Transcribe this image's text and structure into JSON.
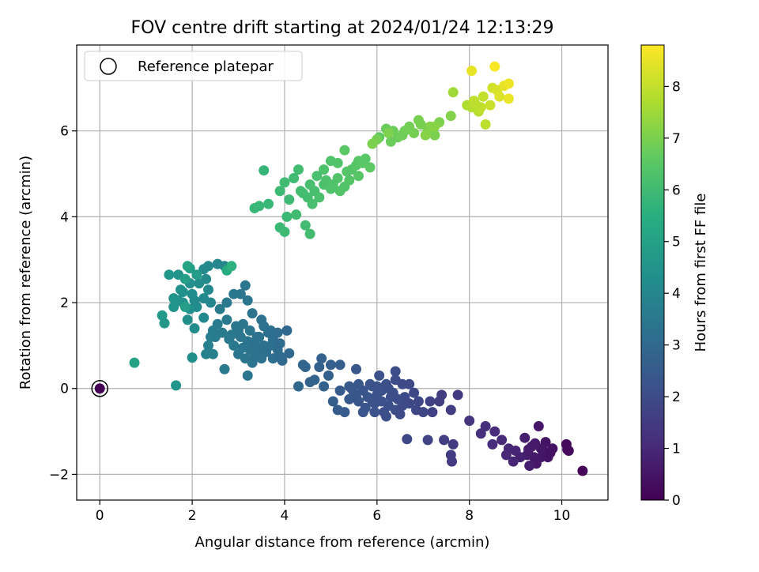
{
  "chart_data": {
    "type": "scatter",
    "title": "FOV centre drift starting at 2024/01/24 12:13:29",
    "xlabel": "Angular distance from reference (arcmin)",
    "ylabel": "Rotation from reference (arcmin)",
    "xlim": [
      -0.5,
      11.0
    ],
    "ylim": [
      -2.6,
      8.0
    ],
    "xticks": [
      0,
      2,
      4,
      6,
      8,
      10
    ],
    "yticks": [
      -2,
      0,
      2,
      4,
      6
    ],
    "grid": true,
    "legend": {
      "placement": "top-left",
      "entries": [
        "Reference platepar"
      ]
    },
    "reference_point": {
      "x": 0,
      "y": 0
    },
    "colorbar": {
      "label": "Hours from first FF file",
      "range": [
        0,
        8.8
      ],
      "ticks": [
        0,
        1,
        2,
        3,
        4,
        5,
        6,
        7,
        8
      ],
      "colormap": "viridis"
    },
    "points": [
      [
        10.45,
        -1.92,
        0.1
      ],
      [
        10.1,
        -1.3,
        0.2
      ],
      [
        10.15,
        -1.45,
        0.25
      ],
      [
        9.8,
        -1.4,
        0.4
      ],
      [
        9.7,
        -1.6,
        0.45
      ],
      [
        9.55,
        -1.6,
        0.5
      ],
      [
        9.5,
        -0.88,
        0.55
      ],
      [
        9.35,
        -1.35,
        0.65
      ],
      [
        9.4,
        -1.6,
        0.6
      ],
      [
        9.6,
        -1.45,
        0.5
      ],
      [
        9.45,
        -1.75,
        0.55
      ],
      [
        9.25,
        -1.55,
        0.7
      ],
      [
        9.2,
        -1.15,
        0.75
      ],
      [
        9.3,
        -1.8,
        0.7
      ],
      [
        9.1,
        -1.6,
        0.85
      ],
      [
        8.95,
        -1.7,
        0.9
      ],
      [
        8.85,
        -1.4,
        1.0
      ],
      [
        8.7,
        -1.2,
        1.05
      ],
      [
        8.55,
        -1.0,
        1.1
      ],
      [
        8.35,
        -0.88,
        1.15
      ],
      [
        8.25,
        -1.05,
        1.2
      ],
      [
        8.5,
        -1.3,
        1.1
      ],
      [
        8.8,
        -1.55,
        1.0
      ],
      [
        9.0,
        -1.45,
        0.9
      ],
      [
        9.65,
        -1.25,
        0.45
      ],
      [
        9.55,
        -1.4,
        0.5
      ],
      [
        9.75,
        -1.5,
        0.42
      ],
      [
        10.12,
        -1.42,
        0.22
      ],
      [
        9.28,
        -1.42,
        0.68
      ],
      [
        9.42,
        -1.28,
        0.6
      ],
      [
        8.0,
        -0.75,
        1.3
      ],
      [
        7.75,
        -0.15,
        1.45
      ],
      [
        7.6,
        -0.5,
        1.55
      ],
      [
        7.35,
        -0.3,
        1.6
      ],
      [
        7.15,
        -0.3,
        1.7
      ],
      [
        7.2,
        -0.55,
        1.7
      ],
      [
        7.4,
        -0.15,
        1.6
      ],
      [
        7.1,
        -1.2,
        1.75
      ],
      [
        7.45,
        -1.2,
        1.6
      ],
      [
        7.65,
        -1.3,
        1.5
      ],
      [
        7.6,
        -1.55,
        1.55
      ],
      [
        7.62,
        -1.7,
        1.5
      ],
      [
        6.65,
        -1.18,
        1.9
      ],
      [
        7.0,
        -0.55,
        1.8
      ],
      [
        6.85,
        -0.5,
        1.85
      ],
      [
        6.7,
        -0.35,
        1.9
      ],
      [
        6.55,
        -0.4,
        2.0
      ],
      [
        6.4,
        -0.5,
        2.05
      ],
      [
        6.25,
        -0.4,
        2.1
      ],
      [
        6.1,
        -0.3,
        2.15
      ],
      [
        6.0,
        -0.15,
        2.2
      ],
      [
        5.9,
        -0.3,
        2.25
      ],
      [
        5.75,
        -0.45,
        2.3
      ],
      [
        5.6,
        -0.3,
        2.35
      ],
      [
        5.5,
        -0.1,
        2.4
      ],
      [
        5.4,
        -0.25,
        2.45
      ],
      [
        5.3,
        -0.55,
        2.5
      ],
      [
        5.15,
        -0.5,
        2.55
      ],
      [
        5.05,
        -0.3,
        2.6
      ],
      [
        5.2,
        -0.05,
        2.5
      ],
      [
        5.4,
        0.05,
        2.45
      ],
      [
        5.6,
        0.1,
        2.35
      ],
      [
        5.55,
        0.45,
        2.4
      ],
      [
        5.85,
        0.1,
        2.3
      ],
      [
        6.05,
        0.3,
        2.2
      ],
      [
        6.2,
        0.1,
        2.15
      ],
      [
        6.4,
        0.2,
        2.05
      ],
      [
        6.4,
        0.4,
        2.05
      ],
      [
        6.55,
        0.1,
        2.0
      ],
      [
        6.7,
        0.1,
        1.95
      ],
      [
        6.8,
        -0.1,
        1.9
      ],
      [
        6.9,
        -0.3,
        1.85
      ],
      [
        6.6,
        -0.2,
        1.95
      ],
      [
        6.3,
        -0.2,
        2.1
      ],
      [
        6.15,
        -0.55,
        2.1
      ],
      [
        5.95,
        -0.55,
        2.2
      ],
      [
        5.8,
        -0.2,
        2.3
      ],
      [
        5.7,
        -0.05,
        2.3
      ],
      [
        5.9,
        0.05,
        2.25
      ],
      [
        6.1,
        -0.05,
        2.15
      ],
      [
        6.35,
        -0.1,
        2.1
      ],
      [
        6.5,
        -0.6,
        2.0
      ],
      [
        6.2,
        -0.65,
        2.1
      ],
      [
        5.95,
        -0.35,
        2.2
      ],
      [
        5.7,
        -0.55,
        2.3
      ],
      [
        5.55,
        -0.2,
        2.35
      ],
      [
        5.45,
        0.0,
        2.4
      ],
      [
        6.0,
        0.05,
        2.2
      ],
      [
        6.25,
        0.0,
        2.1
      ],
      [
        6.45,
        -0.25,
        2.05
      ],
      [
        4.85,
        0.05,
        2.7
      ],
      [
        4.55,
        0.15,
        2.8
      ],
      [
        4.3,
        0.05,
        2.9
      ],
      [
        4.45,
        0.5,
        2.85
      ],
      [
        4.75,
        0.5,
        2.75
      ],
      [
        4.8,
        0.7,
        2.75
      ],
      [
        5.0,
        0.55,
        2.65
      ],
      [
        5.2,
        0.55,
        2.6
      ],
      [
        4.95,
        0.3,
        2.7
      ],
      [
        4.65,
        0.2,
        2.8
      ],
      [
        4.4,
        0.55,
        2.85
      ],
      [
        3.95,
        0.65,
        3.0
      ],
      [
        3.85,
        0.9,
        3.1
      ],
      [
        3.75,
        1.15,
        3.15
      ],
      [
        3.65,
        1.3,
        3.2
      ],
      [
        3.55,
        1.0,
        3.25
      ],
      [
        3.45,
        0.9,
        3.25
      ],
      [
        3.35,
        0.75,
        3.3
      ],
      [
        3.25,
        0.9,
        3.35
      ],
      [
        3.15,
        0.7,
        3.4
      ],
      [
        3.0,
        0.8,
        3.45
      ],
      [
        2.9,
        1.0,
        3.5
      ],
      [
        2.85,
        1.25,
        3.55
      ],
      [
        2.95,
        1.45,
        3.5
      ],
      [
        3.1,
        1.5,
        3.45
      ],
      [
        3.25,
        1.35,
        3.4
      ],
      [
        3.4,
        1.2,
        3.3
      ],
      [
        3.55,
        1.45,
        3.25
      ],
      [
        3.7,
        1.0,
        3.2
      ],
      [
        3.85,
        1.3,
        3.1
      ],
      [
        4.05,
        1.35,
        3.0
      ],
      [
        4.1,
        0.82,
        2.95
      ],
      [
        3.9,
        1.05,
        3.05
      ],
      [
        3.7,
        1.35,
        3.2
      ],
      [
        3.5,
        1.6,
        3.25
      ],
      [
        3.3,
        1.75,
        3.35
      ],
      [
        3.2,
        2.05,
        3.4
      ],
      [
        3.15,
        2.4,
        3.4
      ],
      [
        3.05,
        2.2,
        3.45
      ],
      [
        2.9,
        2.2,
        3.5
      ],
      [
        2.75,
        2.0,
        3.55
      ],
      [
        2.6,
        1.85,
        3.6
      ],
      [
        2.55,
        1.5,
        3.65
      ],
      [
        2.45,
        1.35,
        3.7
      ],
      [
        2.4,
        1.2,
        3.75
      ],
      [
        2.35,
        1.0,
        3.75
      ],
      [
        2.3,
        0.8,
        3.8
      ],
      [
        2.45,
        0.8,
        3.75
      ],
      [
        2.7,
        0.45,
        3.6
      ],
      [
        3.2,
        0.3,
        3.4
      ],
      [
        3.05,
        1.2,
        3.45
      ],
      [
        3.2,
        1.1,
        3.4
      ],
      [
        3.35,
        1.05,
        3.3
      ],
      [
        3.45,
        1.2,
        3.3
      ],
      [
        3.6,
        0.85,
        3.2
      ],
      [
        3.1,
        0.95,
        3.45
      ],
      [
        3.0,
        1.35,
        3.45
      ],
      [
        2.8,
        1.15,
        3.55
      ],
      [
        2.65,
        1.3,
        3.6
      ],
      [
        2.5,
        1.2,
        3.65
      ],
      [
        2.75,
        1.6,
        3.55
      ],
      [
        3.3,
        0.6,
        3.35
      ],
      [
        3.5,
        0.7,
        3.25
      ],
      [
        3.75,
        0.7,
        3.15
      ],
      [
        3.9,
        0.75,
        3.05
      ],
      [
        2.4,
        2.0,
        4.0
      ],
      [
        2.25,
        2.1,
        4.1
      ],
      [
        2.1,
        1.9,
        4.2
      ],
      [
        2.0,
        2.2,
        4.3
      ],
      [
        1.95,
        2.45,
        4.35
      ],
      [
        2.15,
        2.45,
        4.25
      ],
      [
        2.3,
        2.55,
        4.15
      ],
      [
        2.35,
        2.3,
        4.1
      ],
      [
        2.25,
        1.65,
        4.1
      ],
      [
        2.05,
        1.4,
        4.25
      ],
      [
        1.9,
        1.6,
        4.3
      ],
      [
        1.95,
        1.85,
        4.35
      ],
      [
        1.8,
        2.0,
        4.4
      ],
      [
        1.75,
        2.3,
        4.45
      ],
      [
        1.7,
        2.65,
        4.5
      ],
      [
        1.5,
        2.65,
        4.6
      ],
      [
        1.6,
        2.1,
        4.55
      ],
      [
        1.6,
        1.9,
        4.55
      ],
      [
        1.7,
        2.05,
        4.5
      ],
      [
        1.8,
        2.25,
        4.45
      ],
      [
        1.35,
        1.7,
        4.7
      ],
      [
        1.4,
        1.52,
        4.65
      ],
      [
        2.25,
        2.78,
        4.15
      ],
      [
        2.05,
        2.05,
        4.2
      ],
      [
        2.7,
        2.85,
        4.0
      ],
      [
        2.55,
        2.9,
        4.05
      ],
      [
        2.35,
        2.85,
        4.1
      ],
      [
        2.0,
        0.72,
        4.3
      ],
      [
        1.65,
        0.07,
        4.55
      ],
      [
        0.75,
        0.6,
        5.0
      ],
      [
        1.85,
        2.55,
        4.9
      ],
      [
        2.1,
        2.65,
        4.8
      ],
      [
        1.95,
        2.8,
        4.85
      ],
      [
        1.9,
        2.85,
        5.1
      ],
      [
        1.85,
        1.9,
        4.9
      ],
      [
        2.75,
        2.75,
        5.4
      ],
      [
        2.85,
        2.85,
        5.6
      ],
      [
        3.55,
        5.08,
        5.8
      ],
      [
        3.35,
        4.2,
        5.85
      ],
      [
        3.45,
        4.25,
        5.85
      ],
      [
        3.65,
        4.3,
        5.85
      ],
      [
        3.9,
        3.75,
        5.9
      ],
      [
        4.0,
        3.65,
        5.95
      ],
      [
        4.05,
        4.0,
        5.95
      ],
      [
        4.1,
        4.4,
        5.95
      ],
      [
        4.25,
        4.05,
        6.0
      ],
      [
        4.45,
        3.8,
        6.05
      ],
      [
        4.55,
        3.6,
        6.05
      ],
      [
        3.9,
        4.6,
        5.95
      ],
      [
        4.0,
        4.8,
        6.0
      ],
      [
        4.2,
        4.9,
        6.0
      ],
      [
        4.35,
        4.6,
        6.05
      ],
      [
        4.5,
        4.45,
        6.1
      ],
      [
        4.6,
        4.3,
        6.15
      ],
      [
        4.75,
        4.45,
        6.2
      ],
      [
        4.85,
        4.75,
        6.25
      ],
      [
        5.0,
        4.65,
        6.3
      ],
      [
        5.15,
        4.9,
        6.35
      ],
      [
        5.3,
        4.7,
        6.35
      ],
      [
        5.45,
        5.1,
        6.4
      ],
      [
        5.6,
        5.3,
        6.45
      ],
      [
        5.75,
        5.35,
        6.5
      ],
      [
        5.85,
        5.15,
        6.55
      ],
      [
        5.6,
        4.95,
        6.45
      ],
      [
        5.35,
        5.05,
        6.4
      ],
      [
        5.15,
        5.25,
        6.35
      ],
      [
        5.0,
        5.3,
        6.3
      ],
      [
        4.85,
        5.1,
        6.25
      ],
      [
        4.7,
        4.95,
        6.2
      ],
      [
        4.55,
        4.75,
        6.15
      ],
      [
        4.4,
        4.55,
        6.1
      ],
      [
        4.3,
        5.1,
        6.05
      ],
      [
        4.65,
        4.6,
        6.15
      ],
      [
        4.9,
        4.85,
        6.25
      ],
      [
        5.05,
        4.75,
        6.3
      ],
      [
        5.2,
        4.6,
        6.35
      ],
      [
        5.4,
        4.85,
        6.4
      ],
      [
        5.55,
        5.2,
        6.45
      ],
      [
        5.7,
        5.25,
        6.5
      ],
      [
        5.3,
        5.55,
        6.5
      ],
      [
        6.05,
        5.85,
        6.6
      ],
      [
        6.3,
        5.75,
        6.75
      ],
      [
        6.45,
        5.85,
        6.8
      ],
      [
        6.6,
        6.0,
        6.85
      ],
      [
        6.8,
        5.95,
        6.9
      ],
      [
        6.95,
        6.15,
        6.95
      ],
      [
        7.1,
        6.0,
        7.0
      ],
      [
        7.25,
        5.9,
        7.0
      ],
      [
        7.35,
        6.2,
        7.05
      ],
      [
        7.6,
        6.35,
        7.1
      ],
      [
        6.9,
        6.25,
        6.95
      ],
      [
        6.7,
        6.1,
        6.9
      ],
      [
        6.55,
        5.9,
        6.85
      ],
      [
        6.35,
        6.0,
        6.8
      ],
      [
        6.2,
        6.05,
        6.75
      ],
      [
        6.25,
        5.95,
        7.05
      ],
      [
        6.0,
        5.8,
        6.9
      ],
      [
        5.9,
        5.7,
        7.0
      ],
      [
        7.15,
        6.1,
        7.1
      ],
      [
        7.05,
        5.9,
        7.15
      ],
      [
        7.25,
        6.1,
        7.2
      ],
      [
        7.65,
        6.9,
        7.5
      ],
      [
        7.95,
        6.6,
        7.7
      ],
      [
        8.05,
        6.55,
        7.8
      ],
      [
        8.2,
        6.45,
        7.85
      ],
      [
        8.35,
        6.15,
        7.9
      ],
      [
        8.1,
        6.7,
        7.95
      ],
      [
        8.3,
        6.8,
        8.0
      ],
      [
        8.45,
        6.6,
        8.1
      ],
      [
        8.5,
        7.0,
        8.2
      ],
      [
        8.6,
        6.95,
        8.3
      ],
      [
        8.65,
        6.8,
        8.35
      ],
      [
        8.75,
        7.05,
        8.5
      ],
      [
        8.85,
        7.1,
        8.6
      ],
      [
        8.85,
        6.75,
        8.55
      ],
      [
        8.55,
        7.5,
        8.75
      ],
      [
        8.05,
        7.4,
        8.5
      ],
      [
        8.25,
        6.55,
        8.0
      ],
      [
        8.15,
        6.6,
        7.9
      ]
    ]
  }
}
